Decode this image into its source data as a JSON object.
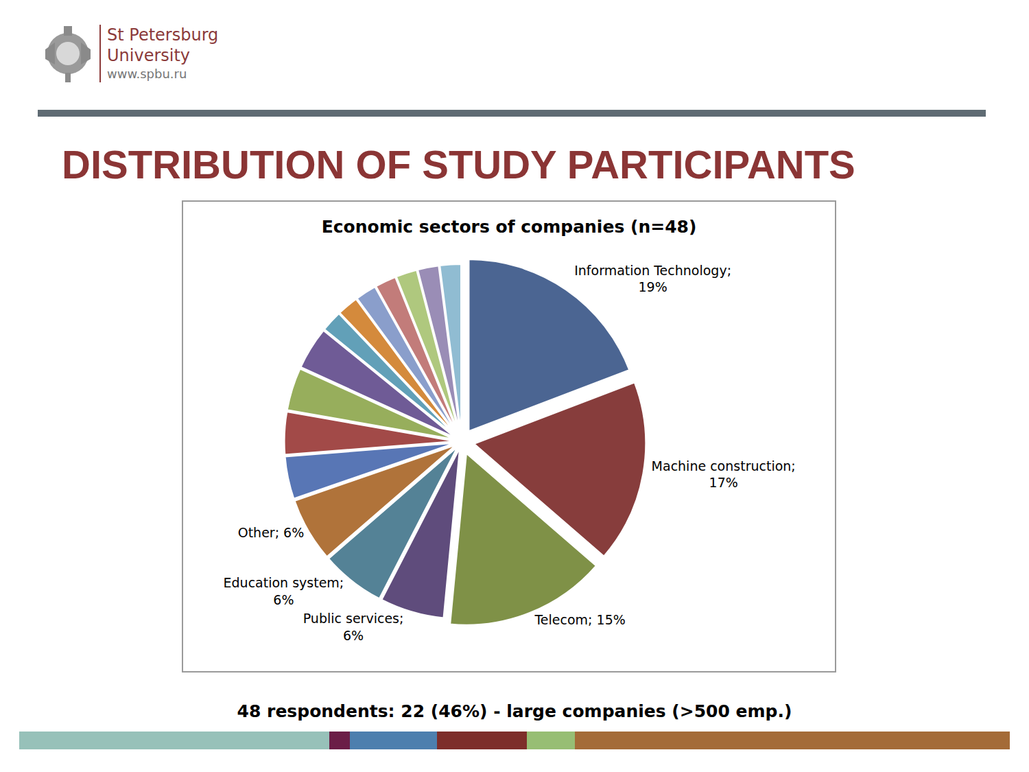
{
  "header": {
    "lines": [
      "St Petersburg",
      "University"
    ],
    "url": "www.spbu.ru"
  },
  "title": "DISTRIBUTION OF STUDY PARTICIPANTS",
  "footer": "48 respondents: 22 (46%)  - large companies (>500 emp.)",
  "chart_data": {
    "type": "pie",
    "title": "Economic sectors of companies (n=48)",
    "categories": [
      "Information Technology; 19%",
      "Machine construction; 17%",
      "Telecom; 15%",
      "Public services; 6%",
      "Education system; 6%",
      "Other; 6%",
      null,
      null,
      null,
      null,
      null,
      null,
      null,
      null,
      null,
      null,
      null
    ],
    "values": [
      19,
      17,
      15,
      6,
      6,
      6,
      4,
      4,
      4,
      4,
      2,
      2,
      2,
      2,
      2,
      2,
      2
    ],
    "colors": [
      "#4b6592",
      "#873d3c",
      "#7f9147",
      "#5f4c7c",
      "#548296",
      "#b0733a",
      "#5876b5",
      "#a24a48",
      "#97ae5c",
      "#6f5b96",
      "#62a0b8",
      "#d48a3c",
      "#8a9ecb",
      "#c27c7a",
      "#afc87e",
      "#9a8db6",
      "#90bcd2"
    ],
    "data_labels": true
  }
}
